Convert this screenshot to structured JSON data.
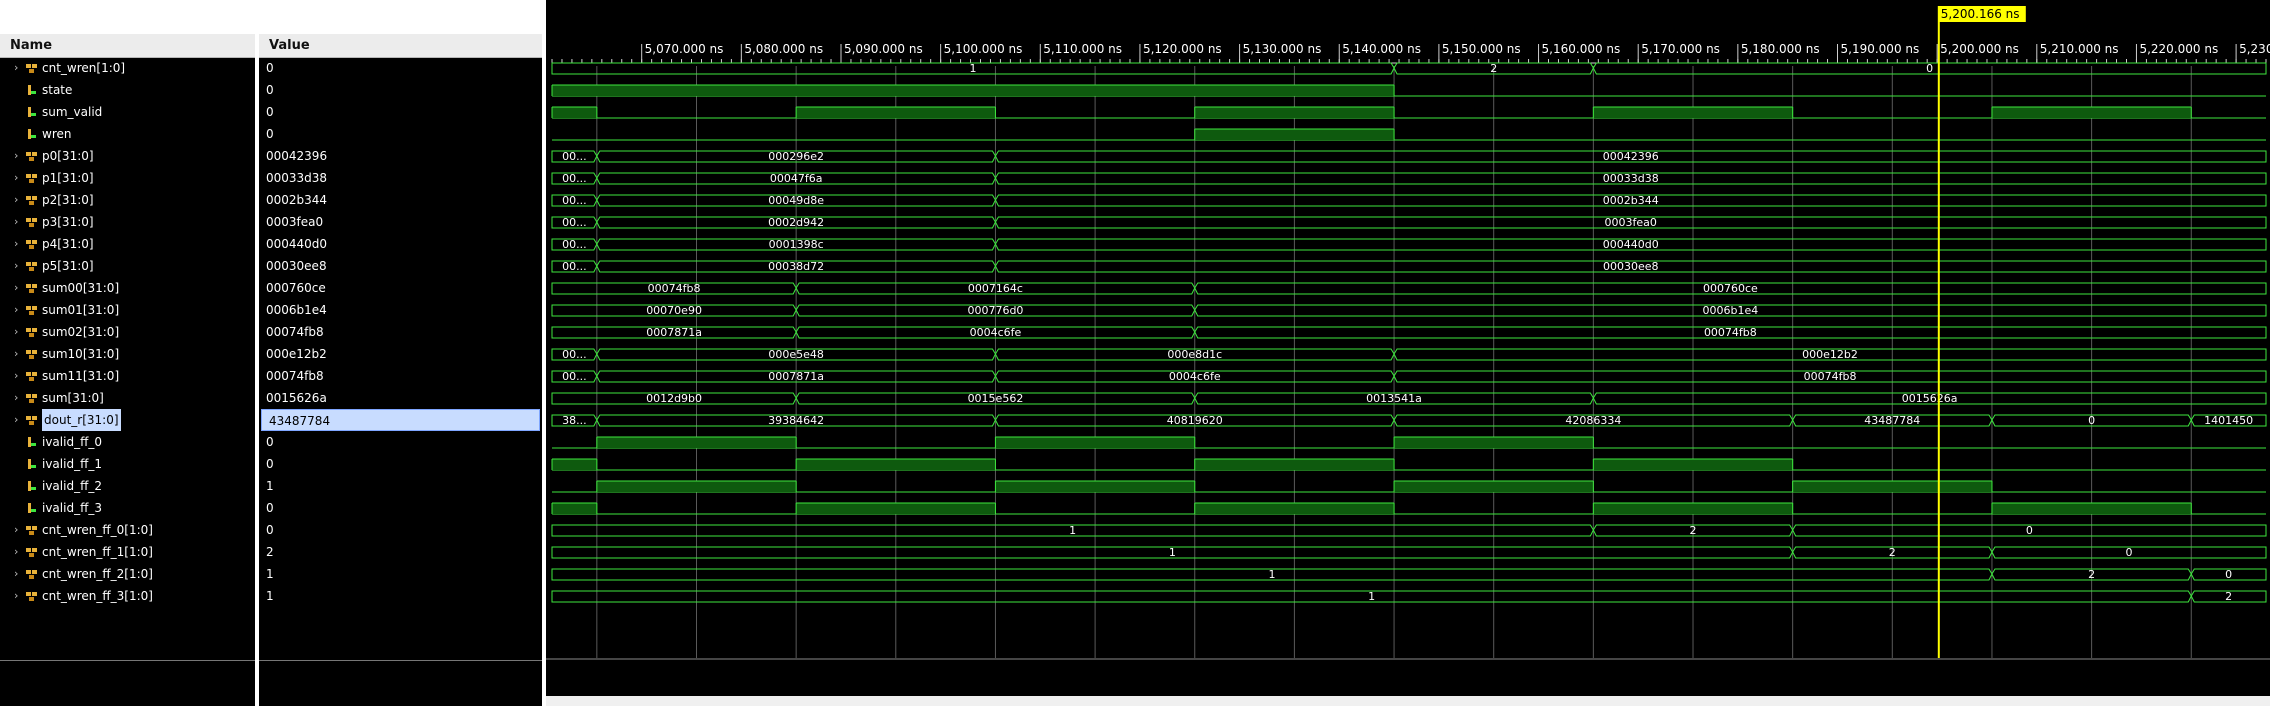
{
  "headers": {
    "name": "Name",
    "value": "Value"
  },
  "cursor": {
    "label": "5,200.166 ns",
    "time": 5200.166
  },
  "time_axis": {
    "start": 5061.0,
    "end": 5233.0,
    "ticks": [
      {
        "t": 5070,
        "label": "5,070.000 ns"
      },
      {
        "t": 5080,
        "label": "5,080.000 ns"
      },
      {
        "t": 5090,
        "label": "5,090.000 ns"
      },
      {
        "t": 5100,
        "label": "5,100.000 ns"
      },
      {
        "t": 5110,
        "label": "5,110.000 ns"
      },
      {
        "t": 5120,
        "label": "5,120.000 ns"
      },
      {
        "t": 5130,
        "label": "5,130.000 ns"
      },
      {
        "t": 5140,
        "label": "5,140.000 ns"
      },
      {
        "t": 5150,
        "label": "5,150.000 ns"
      },
      {
        "t": 5160,
        "label": "5,160.000 ns"
      },
      {
        "t": 5170,
        "label": "5,170.000 ns"
      },
      {
        "t": 5180,
        "label": "5,180.000 ns"
      },
      {
        "t": 5190,
        "label": "5,190.000 ns"
      },
      {
        "t": 5200,
        "label": "5,200.000 ns"
      },
      {
        "t": 5210,
        "label": "5,210.000 ns"
      },
      {
        "t": 5220,
        "label": "5,220.000 ns"
      },
      {
        "t": 5230,
        "label": "5,230.000 ns"
      }
    ],
    "gridlines": [
      5065.5,
      5075.5,
      5085.5,
      5095.5,
      5105.5,
      5115.5,
      5125.5,
      5135.5,
      5145.5,
      5155.5,
      5165.5,
      5175.5,
      5185.5,
      5195.5,
      5205.5,
      5215.5,
      5225.5
    ]
  },
  "colors": {
    "wave": "#3ee63e",
    "fill": "#0e5a0e",
    "grid": "#5a5a5a",
    "cursor": "#ffff00",
    "selection": "#c8dcff"
  },
  "signals": [
    {
      "name": "cnt_wren[1:0]",
      "value": "0",
      "kind": "bus",
      "expand": true,
      "segs": [
        {
          "s": 5061,
          "e": 5145.5,
          "v": "1"
        },
        {
          "s": 5145.5,
          "e": 5165.5,
          "v": "2"
        },
        {
          "s": 5165.5,
          "e": 5233,
          "v": "0"
        }
      ]
    },
    {
      "name": "state",
      "value": "0",
      "kind": "bit",
      "highs": [
        [
          5061,
          5145.5
        ]
      ]
    },
    {
      "name": "sum_valid",
      "value": "0",
      "kind": "bit",
      "highs": [
        [
          5061,
          5065.5
        ],
        [
          5085.5,
          5105.5
        ],
        [
          5125.5,
          5145.5
        ],
        [
          5165.5,
          5185.5
        ],
        [
          5205.5,
          5225.5
        ]
      ]
    },
    {
      "name": "wren",
      "value": "0",
      "kind": "bit",
      "highs": [
        [
          5125.5,
          5145.5
        ]
      ]
    },
    {
      "name": "p0[31:0]",
      "value": "00042396",
      "kind": "bus",
      "expand": true,
      "segs": [
        {
          "s": 5061,
          "e": 5065.5,
          "v": "00..."
        },
        {
          "s": 5065.5,
          "e": 5105.5,
          "v": "000296e2"
        },
        {
          "s": 5105.5,
          "e": 5233,
          "v": "00042396"
        }
      ]
    },
    {
      "name": "p1[31:0]",
      "value": "00033d38",
      "kind": "bus",
      "expand": true,
      "segs": [
        {
          "s": 5061,
          "e": 5065.5,
          "v": "00..."
        },
        {
          "s": 5065.5,
          "e": 5105.5,
          "v": "00047f6a"
        },
        {
          "s": 5105.5,
          "e": 5233,
          "v": "00033d38"
        }
      ]
    },
    {
      "name": "p2[31:0]",
      "value": "0002b344",
      "kind": "bus",
      "expand": true,
      "segs": [
        {
          "s": 5061,
          "e": 5065.5,
          "v": "00..."
        },
        {
          "s": 5065.5,
          "e": 5105.5,
          "v": "00049d8e"
        },
        {
          "s": 5105.5,
          "e": 5233,
          "v": "0002b344"
        }
      ]
    },
    {
      "name": "p3[31:0]",
      "value": "0003fea0",
      "kind": "bus",
      "expand": true,
      "segs": [
        {
          "s": 5061,
          "e": 5065.5,
          "v": "00..."
        },
        {
          "s": 5065.5,
          "e": 5105.5,
          "v": "0002d942"
        },
        {
          "s": 5105.5,
          "e": 5233,
          "v": "0003fea0"
        }
      ]
    },
    {
      "name": "p4[31:0]",
      "value": "000440d0",
      "kind": "bus",
      "expand": true,
      "segs": [
        {
          "s": 5061,
          "e": 5065.5,
          "v": "00..."
        },
        {
          "s": 5065.5,
          "e": 5105.5,
          "v": "0001398c"
        },
        {
          "s": 5105.5,
          "e": 5233,
          "v": "000440d0"
        }
      ]
    },
    {
      "name": "p5[31:0]",
      "value": "00030ee8",
      "kind": "bus",
      "expand": true,
      "segs": [
        {
          "s": 5061,
          "e": 5065.5,
          "v": "00..."
        },
        {
          "s": 5065.5,
          "e": 5105.5,
          "v": "00038d72"
        },
        {
          "s": 5105.5,
          "e": 5233,
          "v": "00030ee8"
        }
      ]
    },
    {
      "name": "sum00[31:0]",
      "value": "000760ce",
      "kind": "bus",
      "expand": true,
      "segs": [
        {
          "s": 5061,
          "e": 5085.5,
          "v": "00074fb8"
        },
        {
          "s": 5085.5,
          "e": 5125.5,
          "v": "0007164c"
        },
        {
          "s": 5125.5,
          "e": 5233,
          "v": "000760ce"
        }
      ]
    },
    {
      "name": "sum01[31:0]",
      "value": "0006b1e4",
      "kind": "bus",
      "expand": true,
      "segs": [
        {
          "s": 5061,
          "e": 5085.5,
          "v": "00070e90"
        },
        {
          "s": 5085.5,
          "e": 5125.5,
          "v": "000776d0"
        },
        {
          "s": 5125.5,
          "e": 5233,
          "v": "0006b1e4"
        }
      ]
    },
    {
      "name": "sum02[31:0]",
      "value": "00074fb8",
      "kind": "bus",
      "expand": true,
      "segs": [
        {
          "s": 5061,
          "e": 5085.5,
          "v": "0007871a"
        },
        {
          "s": 5085.5,
          "e": 5125.5,
          "v": "0004c6fe"
        },
        {
          "s": 5125.5,
          "e": 5233,
          "v": "00074fb8"
        }
      ]
    },
    {
      "name": "sum10[31:0]",
      "value": "000e12b2",
      "kind": "bus",
      "expand": true,
      "segs": [
        {
          "s": 5061,
          "e": 5065.5,
          "v": "00..."
        },
        {
          "s": 5065.5,
          "e": 5105.5,
          "v": "000e5e48"
        },
        {
          "s": 5105.5,
          "e": 5145.5,
          "v": "000e8d1c"
        },
        {
          "s": 5145.5,
          "e": 5233,
          "v": "000e12b2"
        }
      ]
    },
    {
      "name": "sum11[31:0]",
      "value": "00074fb8",
      "kind": "bus",
      "expand": true,
      "segs": [
        {
          "s": 5061,
          "e": 5065.5,
          "v": "00..."
        },
        {
          "s": 5065.5,
          "e": 5105.5,
          "v": "0007871a"
        },
        {
          "s": 5105.5,
          "e": 5145.5,
          "v": "0004c6fe"
        },
        {
          "s": 5145.5,
          "e": 5233,
          "v": "00074fb8"
        }
      ]
    },
    {
      "name": "sum[31:0]",
      "value": "0015626a",
      "kind": "bus",
      "expand": true,
      "segs": [
        {
          "s": 5061,
          "e": 5085.5,
          "v": "0012d9b0"
        },
        {
          "s": 5085.5,
          "e": 5125.5,
          "v": "0015e562"
        },
        {
          "s": 5125.5,
          "e": 5165.5,
          "v": "0013541a"
        },
        {
          "s": 5165.5,
          "e": 5233,
          "v": "0015626a"
        }
      ]
    },
    {
      "name": "dout_r[31:0]",
      "value": "43487784",
      "kind": "bus",
      "expand": true,
      "selected": true,
      "segs": [
        {
          "s": 5061,
          "e": 5065.5,
          "v": "38..."
        },
        {
          "s": 5065.5,
          "e": 5105.5,
          "v": "39384642"
        },
        {
          "s": 5105.5,
          "e": 5145.5,
          "v": "40819620"
        },
        {
          "s": 5145.5,
          "e": 5185.5,
          "v": "42086334"
        },
        {
          "s": 5185.5,
          "e": 5205.5,
          "v": "43487784"
        },
        {
          "s": 5205.5,
          "e": 5225.5,
          "v": "0"
        },
        {
          "s": 5225.5,
          "e": 5233,
          "v": "1401450"
        }
      ]
    },
    {
      "name": "ivalid_ff_0",
      "value": "0",
      "kind": "bit",
      "highs": [
        [
          5065.5,
          5085.5
        ],
        [
          5105.5,
          5125.5
        ],
        [
          5145.5,
          5165.5
        ]
      ]
    },
    {
      "name": "ivalid_ff_1",
      "value": "0",
      "kind": "bit",
      "highs": [
        [
          5061,
          5065.5
        ],
        [
          5085.5,
          5105.5
        ],
        [
          5125.5,
          5145.5
        ],
        [
          5165.5,
          5185.5
        ]
      ]
    },
    {
      "name": "ivalid_ff_2",
      "value": "1",
      "kind": "bit",
      "highs": [
        [
          5065.5,
          5085.5
        ],
        [
          5105.5,
          5125.5
        ],
        [
          5145.5,
          5165.5
        ],
        [
          5185.5,
          5205.5
        ]
      ]
    },
    {
      "name": "ivalid_ff_3",
      "value": "0",
      "kind": "bit",
      "highs": [
        [
          5061,
          5065.5
        ],
        [
          5085.5,
          5105.5
        ],
        [
          5125.5,
          5145.5
        ],
        [
          5165.5,
          5185.5
        ],
        [
          5205.5,
          5225.5
        ]
      ]
    },
    {
      "name": "cnt_wren_ff_0[1:0]",
      "value": "0",
      "kind": "bus",
      "expand": true,
      "segs": [
        {
          "s": 5061,
          "e": 5165.5,
          "v": "1"
        },
        {
          "s": 5165.5,
          "e": 5185.5,
          "v": "2"
        },
        {
          "s": 5185.5,
          "e": 5233,
          "v": "0"
        }
      ]
    },
    {
      "name": "cnt_wren_ff_1[1:0]",
      "value": "2",
      "kind": "bus",
      "expand": true,
      "segs": [
        {
          "s": 5061,
          "e": 5185.5,
          "v": "1"
        },
        {
          "s": 5185.5,
          "e": 5205.5,
          "v": "2"
        },
        {
          "s": 5205.5,
          "e": 5233,
          "v": "0"
        }
      ]
    },
    {
      "name": "cnt_wren_ff_2[1:0]",
      "value": "1",
      "kind": "bus",
      "expand": true,
      "segs": [
        {
          "s": 5061,
          "e": 5205.5,
          "v": "1"
        },
        {
          "s": 5205.5,
          "e": 5225.5,
          "v": "2"
        },
        {
          "s": 5225.5,
          "e": 5233,
          "v": "0"
        }
      ]
    },
    {
      "name": "cnt_wren_ff_3[1:0]",
      "value": "1",
      "kind": "bus",
      "expand": true,
      "segs": [
        {
          "s": 5061,
          "e": 5225.5,
          "v": "1"
        },
        {
          "s": 5225.5,
          "e": 5233,
          "v": "2"
        }
      ]
    }
  ]
}
